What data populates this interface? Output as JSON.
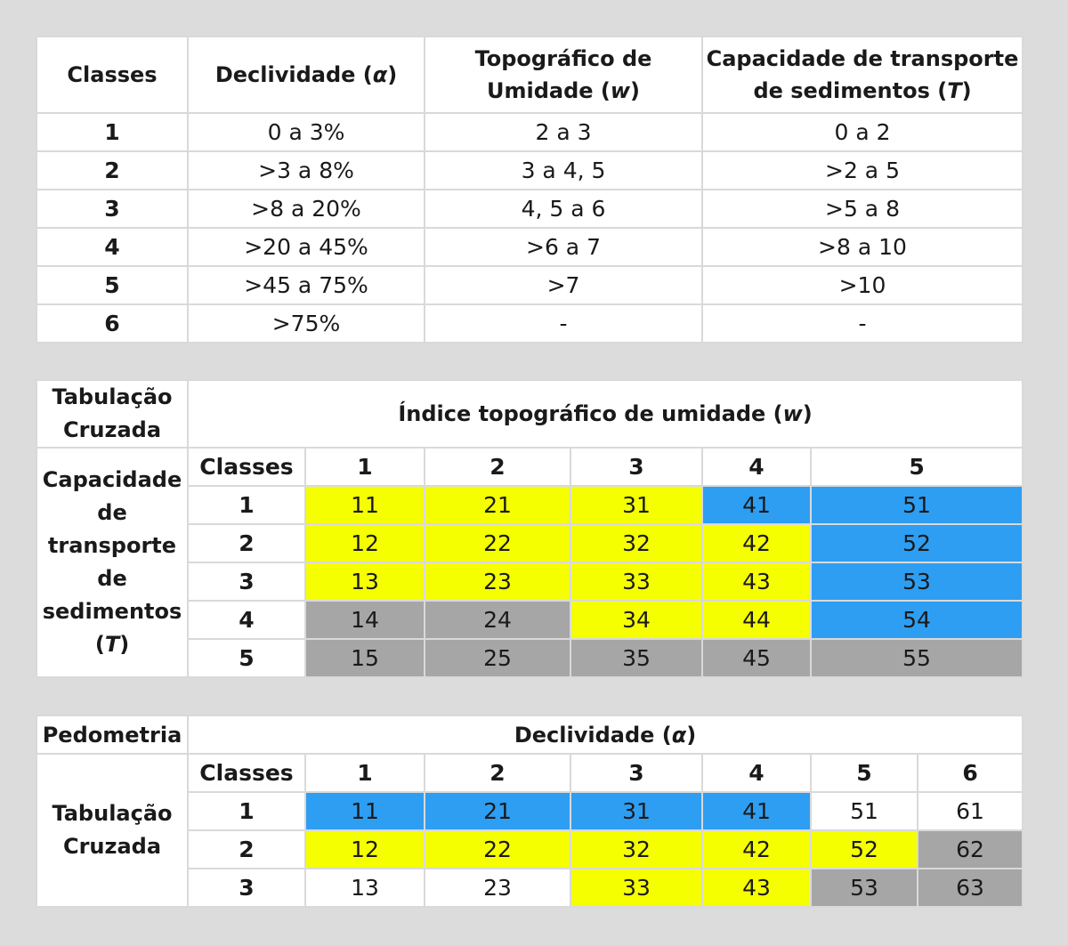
{
  "table1": {
    "headers": {
      "classes": "Classes",
      "declividade": "Declividade (",
      "declividade_sym": "α",
      "declividade_close": ")",
      "topografico_line1": "Topográfico de",
      "topografico_line2": "Umidade (",
      "topografico_sym": "w",
      "topografico_close": ")",
      "capacidade_line1": "Capacidade de transporte",
      "capacidade_line2": "de sedimentos (",
      "capacidade_sym": "T",
      "capacidade_close": ")"
    },
    "rows": [
      [
        "1",
        "0 a 3%",
        "2 a 3",
        "0 a 2"
      ],
      [
        "2",
        ">3 a 8%",
        "3 a 4, 5",
        ">2 a 5"
      ],
      [
        "3",
        ">8 a 20%",
        "4, 5 a 6",
        ">5 a 8"
      ],
      [
        "4",
        ">20 a 45%",
        ">6 a 7",
        ">8 a 10"
      ],
      [
        "5",
        ">45 a 75%",
        ">7",
        ">10"
      ],
      [
        "6",
        ">75%",
        "-",
        "-"
      ]
    ]
  },
  "table2": {
    "corner_line1": "Tabulação",
    "corner_line2": "Cruzada",
    "top_header": "Índice topográfico de umidade (",
    "top_header_sym": "w",
    "top_header_close": ")",
    "side_lines": [
      "Capacidade",
      "de",
      "transporte",
      "de",
      "sedimentos"
    ],
    "side_sym": "T",
    "classes_label": "Classes",
    "columns": [
      "1",
      "2",
      "3",
      "4",
      "5"
    ],
    "rows": [
      {
        "label": "1",
        "cells": [
          "11",
          "21",
          "31",
          "41",
          "51"
        ]
      },
      {
        "label": "2",
        "cells": [
          "12",
          "22",
          "32",
          "42",
          "52"
        ]
      },
      {
        "label": "3",
        "cells": [
          "13",
          "23",
          "33",
          "43",
          "53"
        ]
      },
      {
        "label": "4",
        "cells": [
          "14",
          "24",
          "34",
          "44",
          "54"
        ]
      },
      {
        "label": "5",
        "cells": [
          "15",
          "25",
          "35",
          "45",
          "55"
        ]
      }
    ]
  },
  "table3": {
    "corner": "Pedometria",
    "top_header": "Declividade (",
    "top_header_sym": "α",
    "top_header_close": ")",
    "side_line1": "Tabulação",
    "side_line2": "Cruzada",
    "classes_label": "Classes",
    "columns": [
      "1",
      "2",
      "3",
      "4",
      "5",
      "6"
    ],
    "rows": [
      {
        "label": "1",
        "cells": [
          "11",
          "21",
          "31",
          "41",
          "51",
          "61"
        ]
      },
      {
        "label": "2",
        "cells": [
          "12",
          "22",
          "32",
          "42",
          "52",
          "62"
        ]
      },
      {
        "label": "3",
        "cells": [
          "13",
          "23",
          "33",
          "43",
          "53",
          "63"
        ]
      }
    ]
  },
  "colors": {
    "yellow": "#f5ff00",
    "blue": "#2e9ef2",
    "gray": "#a6a6a6",
    "white": "#ffffff"
  }
}
